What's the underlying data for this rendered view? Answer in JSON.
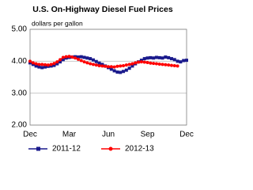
{
  "chart_data": {
    "type": "line",
    "title": "U.S. On-Highway Diesel Fuel Prices",
    "subtitle": "dollars per gallon",
    "categories": [
      "Dec",
      null,
      null,
      null,
      null,
      null,
      null,
      null,
      null,
      null,
      null,
      null,
      null,
      "Mar",
      null,
      null,
      null,
      null,
      null,
      null,
      null,
      null,
      null,
      null,
      null,
      null,
      "Jun",
      null,
      null,
      null,
      null,
      null,
      null,
      null,
      null,
      null,
      null,
      null,
      null,
      "Sep",
      null,
      null,
      null,
      null,
      null,
      null,
      null,
      null,
      null,
      null,
      null,
      null,
      "Dec"
    ],
    "series": [
      {
        "name": "2011-12",
        "color": "#1a1a8c",
        "marker": "square",
        "values": [
          3.95,
          3.9,
          3.85,
          3.82,
          3.8,
          3.82,
          3.84,
          3.85,
          3.87,
          3.92,
          3.98,
          4.05,
          4.1,
          4.12,
          4.13,
          4.14,
          4.13,
          4.14,
          4.12,
          4.1,
          4.08,
          4.04,
          3.99,
          3.94,
          3.9,
          3.85,
          3.8,
          3.75,
          3.7,
          3.66,
          3.65,
          3.68,
          3.72,
          3.78,
          3.85,
          3.92,
          3.98,
          4.03,
          4.08,
          4.1,
          4.11,
          4.1,
          4.12,
          4.11,
          4.1,
          4.13,
          4.11,
          4.08,
          4.05,
          4.0,
          3.98,
          4.02,
          4.03
        ]
      },
      {
        "name": "2012-13",
        "color": "#ff0000",
        "marker": "circle",
        "values": [
          4.0,
          3.95,
          3.92,
          3.9,
          3.9,
          3.89,
          3.88,
          3.9,
          3.93,
          3.98,
          4.05,
          4.12,
          4.14,
          4.15,
          4.13,
          4.1,
          4.06,
          4.02,
          3.98,
          3.95,
          3.92,
          3.9,
          3.88,
          3.86,
          3.85,
          3.84,
          3.83,
          3.83,
          3.82,
          3.84,
          3.85,
          3.86,
          3.88,
          3.9,
          3.92,
          3.95,
          3.97,
          3.98,
          3.97,
          3.96,
          3.94,
          3.93,
          3.92,
          3.91,
          3.9,
          3.89,
          3.88,
          3.87,
          3.86,
          3.85,
          null,
          null,
          null
        ]
      }
    ],
    "ylim": [
      2,
      5
    ],
    "yticks": [
      {
        "value": 2,
        "label": "2.00"
      },
      {
        "value": 3,
        "label": "3.00"
      },
      {
        "value": 4,
        "label": "4.00"
      },
      {
        "value": 5,
        "label": "5.00"
      }
    ],
    "grid": true
  }
}
